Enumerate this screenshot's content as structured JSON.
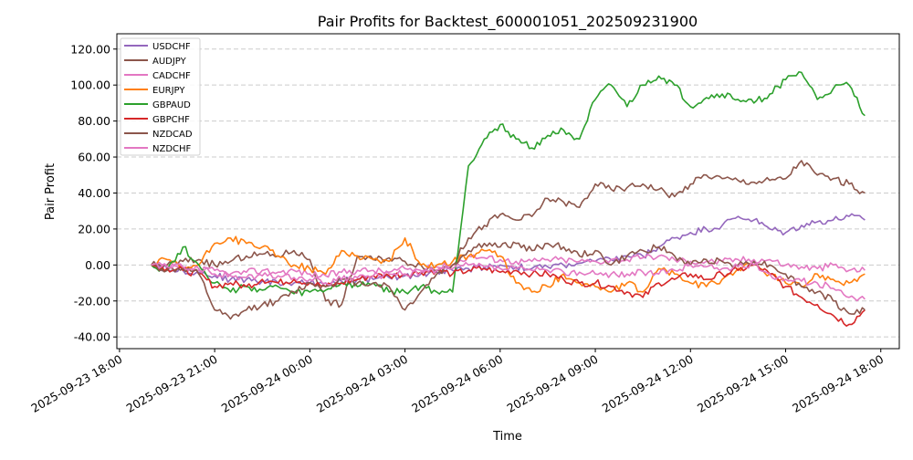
{
  "chart_data": {
    "type": "line",
    "title": "Pair Profits for Backtest_600001051_202509231900",
    "xlabel": "Time",
    "ylabel": "Pair Profit",
    "ylim": [
      -46.5,
      128.5
    ],
    "xlim": [
      "2025-09-23 17:55",
      "2025-09-24 18:35"
    ],
    "grid": "y-dashed",
    "legend_position": "top-left",
    "y_ticks": [
      -40,
      -20,
      0,
      20,
      40,
      60,
      80,
      100,
      120
    ],
    "y_tick_labels": [
      "-40.00",
      "-20.00",
      "0.00",
      "20.00",
      "40.00",
      "60.00",
      "80.00",
      "100.00",
      "120.00"
    ],
    "x_ticks": [
      "2025-09-23 18:00",
      "2025-09-23 21:00",
      "2025-09-24 00:00",
      "2025-09-24 03:00",
      "2025-09-24 06:00",
      "2025-09-24 09:00",
      "2025-09-24 12:00",
      "2025-09-24 15:00",
      "2025-09-24 18:00"
    ],
    "x": [
      "2025-09-23 19:00",
      "2025-09-23 19:30",
      "2025-09-23 20:00",
      "2025-09-23 20:30",
      "2025-09-23 21:00",
      "2025-09-23 21:30",
      "2025-09-23 22:00",
      "2025-09-23 22:30",
      "2025-09-23 23:00",
      "2025-09-23 23:30",
      "2025-09-24 00:00",
      "2025-09-24 00:30",
      "2025-09-24 01:00",
      "2025-09-24 01:30",
      "2025-09-24 02:00",
      "2025-09-24 02:30",
      "2025-09-24 03:00",
      "2025-09-24 03:30",
      "2025-09-24 04:00",
      "2025-09-24 04:30",
      "2025-09-24 05:00",
      "2025-09-24 05:30",
      "2025-09-24 06:00",
      "2025-09-24 06:30",
      "2025-09-24 07:00",
      "2025-09-24 07:30",
      "2025-09-24 08:00",
      "2025-09-24 08:30",
      "2025-09-24 09:00",
      "2025-09-24 09:30",
      "2025-09-24 10:00",
      "2025-09-24 10:30",
      "2025-09-24 11:00",
      "2025-09-24 11:30",
      "2025-09-24 12:00",
      "2025-09-24 12:30",
      "2025-09-24 13:00",
      "2025-09-24 13:30",
      "2025-09-24 14:00",
      "2025-09-24 14:30",
      "2025-09-24 15:00",
      "2025-09-24 15:30",
      "2025-09-24 16:00",
      "2025-09-24 16:30",
      "2025-09-24 17:00",
      "2025-09-24 17:30"
    ],
    "series": [
      {
        "name": "USDCHF",
        "color": "#9467bd",
        "values": [
          0,
          -2,
          -3,
          -4,
          -6,
          -8,
          -8,
          -9,
          -10,
          -10,
          -10,
          -10,
          -9,
          -8,
          -8,
          -7,
          -6,
          -5,
          -4,
          -3,
          -2,
          -1,
          0,
          -1,
          -2,
          -1,
          0,
          1,
          2,
          3,
          5,
          5,
          10,
          15,
          18,
          20,
          22,
          27,
          25,
          20,
          18,
          22,
          24,
          25,
          27,
          25
        ]
      },
      {
        "name": "AUDJPY",
        "color": "#8c564b",
        "values": [
          0,
          0,
          2,
          3,
          0,
          2,
          5,
          6,
          5,
          8,
          3,
          -20,
          -22,
          5,
          3,
          4,
          2,
          0,
          -3,
          0,
          15,
          22,
          28,
          25,
          27,
          37,
          35,
          32,
          45,
          42,
          43,
          45,
          42,
          38,
          45,
          50,
          48,
          47,
          46,
          47,
          48,
          58,
          50,
          48,
          45,
          40
        ]
      },
      {
        "name": "CADCHF",
        "color": "#e377c2",
        "values": [
          0,
          -1,
          -2,
          -3,
          -3,
          -5,
          -4,
          -3,
          -4,
          -3,
          -5,
          -6,
          -4,
          -3,
          -3,
          -4,
          -2,
          -3,
          -1,
          0,
          5,
          4,
          3,
          2,
          2,
          3,
          3,
          2,
          2,
          3,
          3,
          4,
          5,
          3,
          2,
          2,
          2,
          3,
          3,
          3,
          0,
          -1,
          -2,
          0,
          -3,
          -3
        ]
      },
      {
        "name": "EURJPY",
        "color": "#ff7f0e",
        "values": [
          0,
          3,
          -2,
          0,
          12,
          15,
          12,
          10,
          5,
          0,
          -2,
          -5,
          8,
          5,
          3,
          2,
          15,
          0,
          0,
          2,
          5,
          8,
          5,
          -10,
          -15,
          -12,
          -5,
          -10,
          -12,
          -15,
          -10,
          -15,
          -2,
          -5,
          -10,
          -12,
          -8,
          -2,
          0,
          -5,
          -10,
          -12,
          -5,
          -8,
          -10,
          -5
        ]
      },
      {
        "name": "GBPAUD",
        "color": "#2ca02c",
        "values": [
          0,
          -3,
          10,
          0,
          -10,
          -15,
          -12,
          -14,
          -12,
          -16,
          -15,
          -14,
          -10,
          -12,
          -10,
          -15,
          -15,
          -12,
          -15,
          -15,
          55,
          70,
          78,
          70,
          65,
          72,
          75,
          70,
          92,
          100,
          88,
          100,
          105,
          100,
          88,
          93,
          95,
          92,
          90,
          95,
          103,
          107,
          92,
          98,
          100,
          83
        ]
      },
      {
        "name": "GBPCHF",
        "color": "#d62728",
        "values": [
          0,
          -2,
          -3,
          -5,
          -12,
          -10,
          -12,
          -8,
          -10,
          -8,
          -10,
          -12,
          -10,
          -8,
          -6,
          -6,
          -5,
          -4,
          -3,
          -5,
          -3,
          -2,
          -4,
          -3,
          -5,
          -5,
          -8,
          -10,
          -10,
          -12,
          -15,
          -18,
          -10,
          -8,
          -5,
          -8,
          -5,
          -3,
          0,
          -5,
          -12,
          -18,
          -22,
          -28,
          -33,
          -25
        ]
      },
      {
        "name": "NZDCAD",
        "color": "#8c564b",
        "values": [
          0,
          -3,
          -2,
          -5,
          -25,
          -30,
          -25,
          -22,
          -20,
          -15,
          -10,
          -12,
          -8,
          -10,
          -10,
          -12,
          -25,
          -15,
          -5,
          0,
          8,
          12,
          10,
          12,
          8,
          12,
          10,
          5,
          8,
          0,
          5,
          8,
          10,
          5,
          0,
          3,
          2,
          0,
          2,
          0,
          -5,
          -12,
          -15,
          -20,
          -27,
          -25
        ]
      },
      {
        "name": "NZDCHF",
        "color": "#e377c2",
        "values": [
          0,
          -1,
          -1,
          -2,
          -5,
          -6,
          -7,
          -6,
          -6,
          -7,
          -8,
          -10,
          -8,
          -7,
          -6,
          -5,
          -5,
          -4,
          -3,
          -2,
          0,
          -1,
          -2,
          -2,
          -3,
          -3,
          -4,
          -4,
          -5,
          -5,
          -5,
          -4,
          -5,
          -3,
          0,
          -1,
          -2,
          -1,
          0,
          -5,
          -8,
          -9,
          -10,
          -13,
          -18,
          -19
        ]
      }
    ]
  }
}
